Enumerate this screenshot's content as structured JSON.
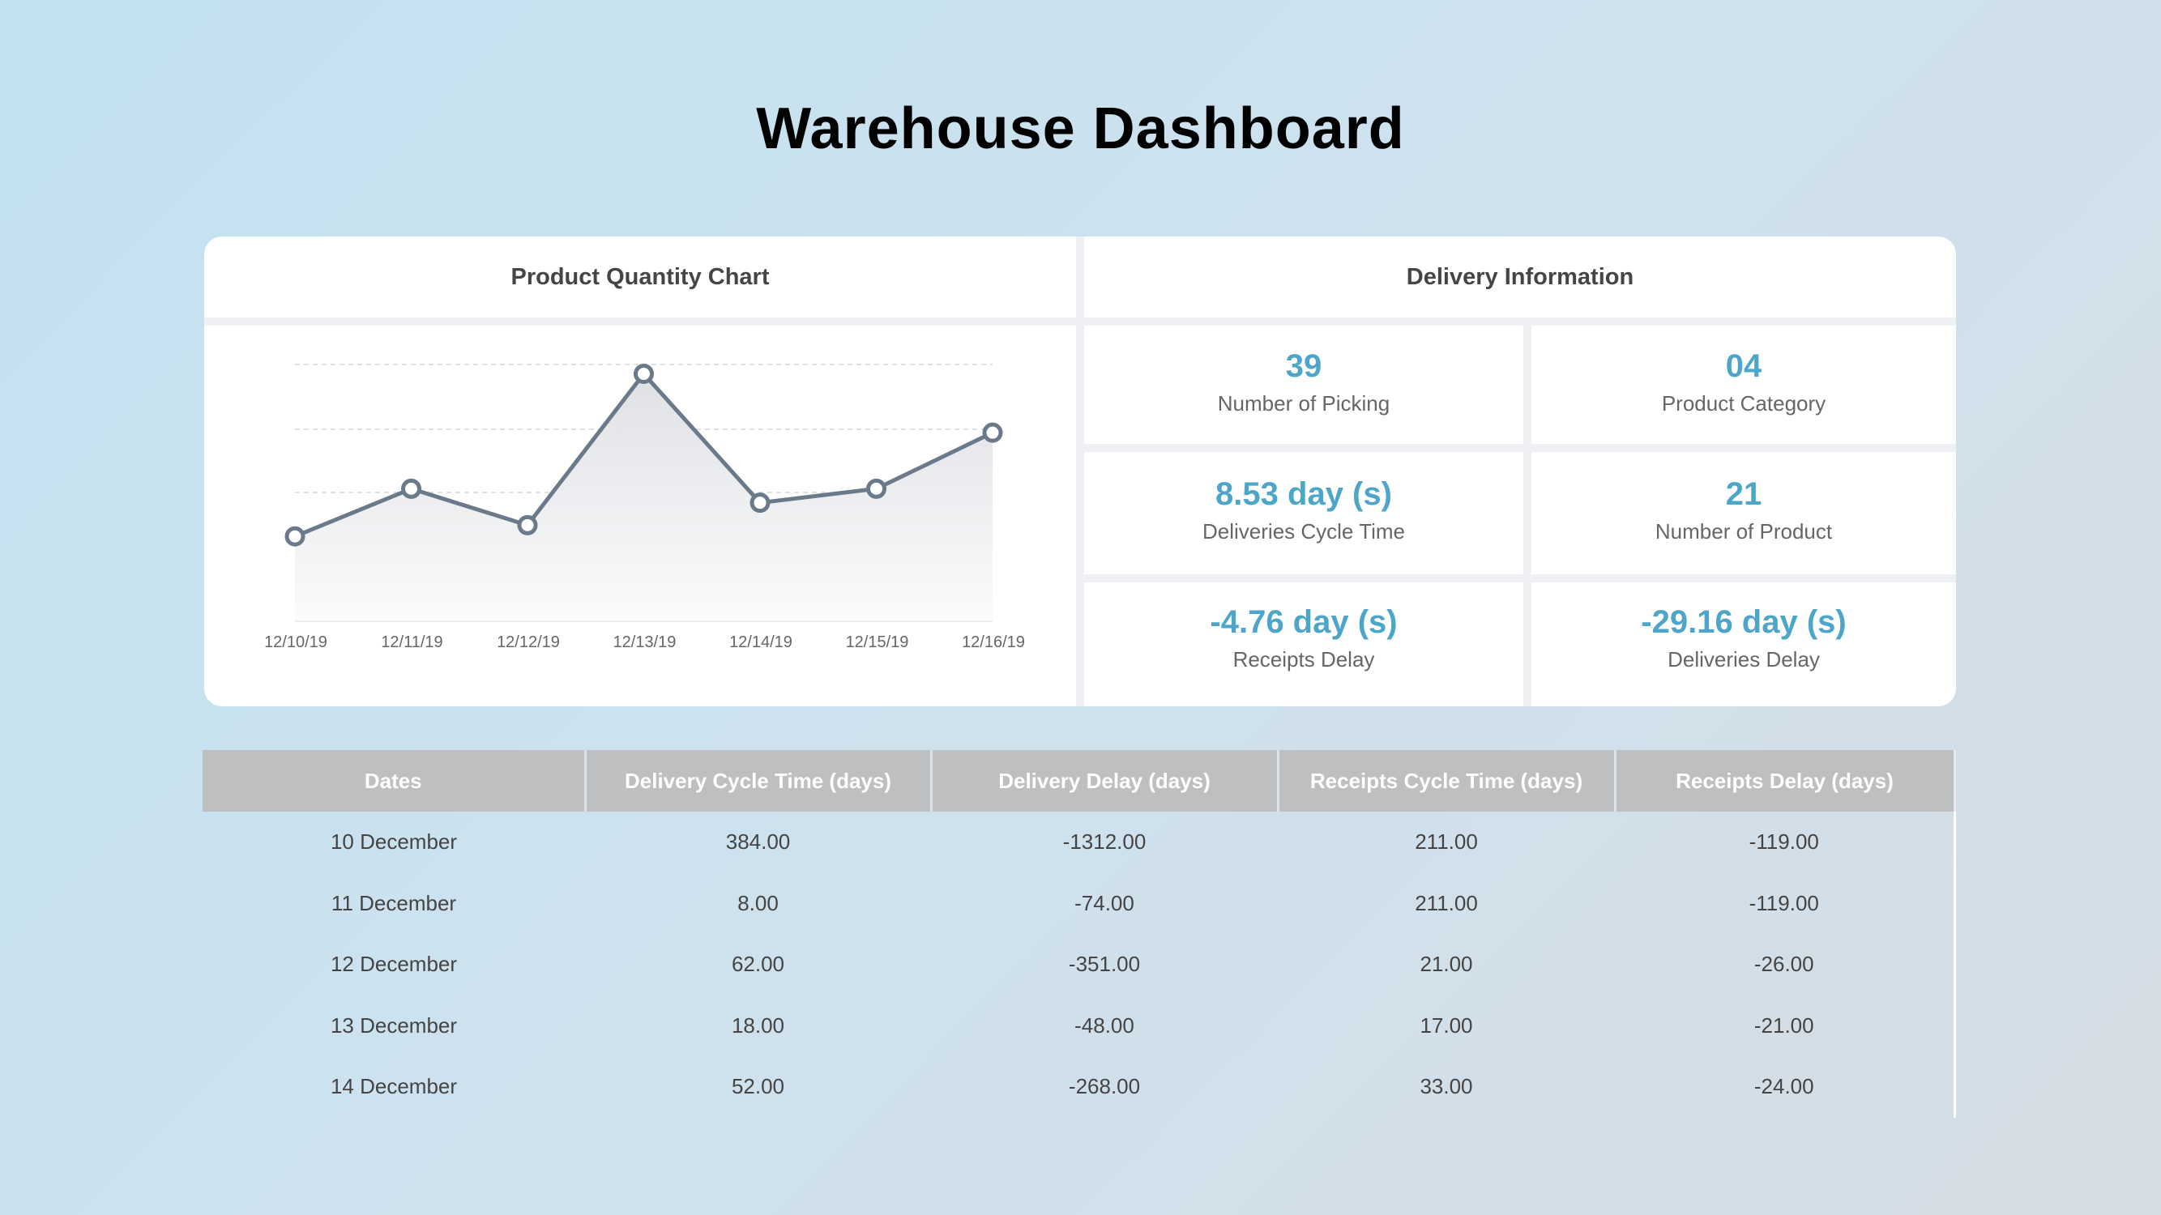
{
  "page": {
    "title": "Warehouse Dashboard"
  },
  "chart_panel": {
    "title": "Product Quantity Chart"
  },
  "chart_data": {
    "type": "area",
    "title": "Product Quantity Chart",
    "categories": [
      "12/10/19",
      "12/11/19",
      "12/12/19",
      "12/13/19",
      "12/14/19",
      "12/15/19",
      "12/16/19"
    ],
    "series": [
      {
        "values": [
          30,
          47,
          34,
          88,
          42,
          47,
          67
        ]
      }
    ],
    "ylim": [
      0,
      100
    ],
    "grid": true,
    "legend": "none",
    "colors": {
      "line": "#6b7a8b",
      "fill_top": "#dfe1e5",
      "fill_bottom": "#fbfbfc",
      "grid": "#d2d6db"
    }
  },
  "delivery_panel": {
    "title": "Delivery Information",
    "kpis": [
      {
        "value": "39",
        "label": "Number of Picking"
      },
      {
        "value": "04",
        "label": "Product Category"
      },
      {
        "value": "8.53 day (s)",
        "label": "Deliveries Cycle Time"
      },
      {
        "value": "21",
        "label": "Number of Product"
      },
      {
        "value": "-4.76 day (s)",
        "label": "Receipts Delay"
      },
      {
        "value": "-29.16 day (s)",
        "label": "Deliveries Delay"
      }
    ],
    "accent": "#4da6c9"
  },
  "table": {
    "headers": [
      "Dates",
      "Delivery Cycle Time (days)",
      "Delivery Delay (days)",
      "Receipts Cycle Time (days)",
      "Receipts Delay (days)"
    ],
    "rows": [
      [
        "10 December",
        "384.00",
        "-1312.00",
        "211.00",
        "-119.00"
      ],
      [
        "11 December",
        "8.00",
        "-74.00",
        "211.00",
        "-119.00"
      ],
      [
        "12 December",
        "62.00",
        "-351.00",
        "21.00",
        "-26.00"
      ],
      [
        "13 December",
        "18.00",
        "-48.00",
        "17.00",
        "-21.00"
      ],
      [
        "14 December",
        "52.00",
        "-268.00",
        "33.00",
        "-24.00"
      ]
    ]
  }
}
